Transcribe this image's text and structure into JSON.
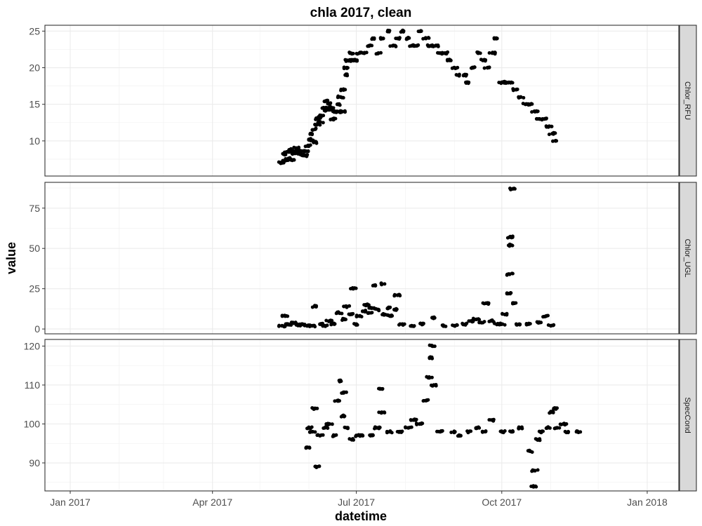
{
  "chart_data": {
    "type": "scatter",
    "title": "chla 2017, clean",
    "xlabel": "datetime",
    "ylabel": "value",
    "x_type": "date",
    "x_range": [
      "2016-12-16",
      "2018-01-21"
    ],
    "x_ticks": [
      {
        "date": "2017-01-01",
        "label": "Jan 2017"
      },
      {
        "date": "2017-04-01",
        "label": "Apr 2017"
      },
      {
        "date": "2017-07-01",
        "label": "Jul 2017"
      },
      {
        "date": "2017-10-01",
        "label": "Oct 2017"
      },
      {
        "date": "2018-01-01",
        "label": "Jan 2018"
      }
    ],
    "grid": true,
    "point_color": "#000000",
    "panels": [
      {
        "name": "Chlor_RFU",
        "ylim": [
          5.2,
          25.8
        ],
        "y_ticks": [
          10,
          15,
          20,
          25
        ],
        "points": [
          [
            "2017-05-15",
            7.0
          ],
          [
            "2017-05-16",
            8.2
          ],
          [
            "2017-05-17",
            7.3
          ],
          [
            "2017-05-18",
            8.5
          ],
          [
            "2017-05-19",
            7.6
          ],
          [
            "2017-05-20",
            8.8
          ],
          [
            "2017-05-21",
            7.4
          ],
          [
            "2017-05-22",
            8.6
          ],
          [
            "2017-05-23",
            8.3
          ],
          [
            "2017-05-24",
            9.0
          ],
          [
            "2017-05-25",
            8.4
          ],
          [
            "2017-05-26",
            8.7
          ],
          [
            "2017-05-27",
            8.5
          ],
          [
            "2017-05-28",
            8.1
          ],
          [
            "2017-05-29",
            8.0
          ],
          [
            "2017-05-30",
            8.6
          ],
          [
            "2017-05-31",
            9.3
          ],
          [
            "2017-06-01",
            10.2
          ],
          [
            "2017-06-02",
            11.0
          ],
          [
            "2017-06-03",
            10.1
          ],
          [
            "2017-06-04",
            9.8
          ],
          [
            "2017-06-05",
            11.6
          ],
          [
            "2017-06-06",
            12.2
          ],
          [
            "2017-06-07",
            13.0
          ],
          [
            "2017-06-08",
            12.6
          ],
          [
            "2017-06-09",
            13.4
          ],
          [
            "2017-06-10",
            14.5
          ],
          [
            "2017-06-11",
            15.4
          ],
          [
            "2017-06-12",
            14.2
          ],
          [
            "2017-06-13",
            15.1
          ],
          [
            "2017-06-14",
            14.3
          ],
          [
            "2017-06-15",
            14.6
          ],
          [
            "2017-06-16",
            13.0
          ],
          [
            "2017-06-17",
            14.0
          ],
          [
            "2017-06-18",
            14.0
          ],
          [
            "2017-06-19",
            15.0
          ],
          [
            "2017-06-20",
            14.0
          ],
          [
            "2017-06-21",
            16.0
          ],
          [
            "2017-06-22",
            14.0
          ],
          [
            "2017-06-23",
            17.0
          ],
          [
            "2017-06-24",
            19.0
          ],
          [
            "2017-06-25",
            20.0
          ],
          [
            "2017-06-26",
            21.0
          ],
          [
            "2017-06-27",
            22.0
          ],
          [
            "2017-06-28",
            21.0
          ],
          [
            "2017-06-29",
            21.0
          ],
          [
            "2017-06-30",
            21.0
          ],
          [
            "2017-07-03",
            22.0
          ],
          [
            "2017-07-06",
            22.0
          ],
          [
            "2017-07-09",
            23.0
          ],
          [
            "2017-07-12",
            24.0
          ],
          [
            "2017-07-15",
            22.0
          ],
          [
            "2017-07-18",
            24.0
          ],
          [
            "2017-07-21",
            25.0
          ],
          [
            "2017-07-24",
            23.0
          ],
          [
            "2017-07-27",
            24.0
          ],
          [
            "2017-07-30",
            25.0
          ],
          [
            "2017-08-02",
            24.0
          ],
          [
            "2017-08-05",
            23.0
          ],
          [
            "2017-08-08",
            23.0
          ],
          [
            "2017-08-11",
            25.0
          ],
          [
            "2017-08-14",
            24.0
          ],
          [
            "2017-08-17",
            23.0
          ],
          [
            "2017-08-20",
            23.0
          ],
          [
            "2017-08-23",
            22.0
          ],
          [
            "2017-08-26",
            22.0
          ],
          [
            "2017-08-29",
            21.0
          ],
          [
            "2017-09-01",
            20.0
          ],
          [
            "2017-09-04",
            19.0
          ],
          [
            "2017-09-07",
            19.0
          ],
          [
            "2017-09-10",
            18.0
          ],
          [
            "2017-09-13",
            20.0
          ],
          [
            "2017-09-16",
            22.0
          ],
          [
            "2017-09-19",
            21.0
          ],
          [
            "2017-09-22",
            20.0
          ],
          [
            "2017-09-25",
            22.0
          ],
          [
            "2017-09-28",
            24.0
          ],
          [
            "2017-10-01",
            18.0
          ],
          [
            "2017-10-04",
            18.0
          ],
          [
            "2017-10-07",
            18.0
          ],
          [
            "2017-10-10",
            17.0
          ],
          [
            "2017-10-13",
            16.0
          ],
          [
            "2017-10-16",
            15.0
          ],
          [
            "2017-10-19",
            15.0
          ],
          [
            "2017-10-22",
            14.0
          ],
          [
            "2017-10-25",
            13.0
          ],
          [
            "2017-10-28",
            13.0
          ],
          [
            "2017-10-31",
            12.0
          ],
          [
            "2017-11-02",
            11.0
          ],
          [
            "2017-11-04",
            10.0
          ]
        ]
      },
      {
        "name": "Chlor_UGL",
        "ylim": [
          -3,
          91
        ],
        "y_ticks": [
          0,
          25,
          50,
          75
        ],
        "points": [
          [
            "2017-05-15",
            2.0
          ],
          [
            "2017-05-17",
            8.0
          ],
          [
            "2017-05-19",
            3.0
          ],
          [
            "2017-05-22",
            4.0
          ],
          [
            "2017-05-25",
            2.5
          ],
          [
            "2017-05-28",
            3.0
          ],
          [
            "2017-05-31",
            2.0
          ],
          [
            "2017-06-03",
            2.0
          ],
          [
            "2017-06-05",
            14.0
          ],
          [
            "2017-06-08",
            3.0
          ],
          [
            "2017-06-11",
            2.0
          ],
          [
            "2017-06-14",
            5.0
          ],
          [
            "2017-06-17",
            3.0
          ],
          [
            "2017-06-20",
            10.0
          ],
          [
            "2017-06-23",
            6.0
          ],
          [
            "2017-06-25",
            14.0
          ],
          [
            "2017-06-27",
            9.0
          ],
          [
            "2017-06-29",
            25.0
          ],
          [
            "2017-07-01",
            3.0
          ],
          [
            "2017-07-03",
            8.0
          ],
          [
            "2017-07-05",
            11.0
          ],
          [
            "2017-07-07",
            15.0
          ],
          [
            "2017-07-09",
            10.0
          ],
          [
            "2017-07-11",
            13.0
          ],
          [
            "2017-07-13",
            27.0
          ],
          [
            "2017-07-15",
            12.0
          ],
          [
            "2017-07-17",
            28.0
          ],
          [
            "2017-07-19",
            9.0
          ],
          [
            "2017-07-21",
            13.0
          ],
          [
            "2017-07-23",
            8.0
          ],
          [
            "2017-07-25",
            12.0
          ],
          [
            "2017-07-27",
            21.0
          ],
          [
            "2017-07-30",
            3.0
          ],
          [
            "2017-08-05",
            2.0
          ],
          [
            "2017-08-12",
            3.0
          ],
          [
            "2017-08-18",
            7.0
          ],
          [
            "2017-08-25",
            2.0
          ],
          [
            "2017-09-01",
            2.0
          ],
          [
            "2017-09-08",
            3.0
          ],
          [
            "2017-09-12",
            5.0
          ],
          [
            "2017-09-15",
            6.0
          ],
          [
            "2017-09-18",
            4.0
          ],
          [
            "2017-09-21",
            16.0
          ],
          [
            "2017-09-25",
            5.0
          ],
          [
            "2017-09-28",
            3.0
          ],
          [
            "2017-10-01",
            3.0
          ],
          [
            "2017-10-03",
            9.0
          ],
          [
            "2017-10-05",
            22.0
          ],
          [
            "2017-10-06",
            34.0
          ],
          [
            "2017-10-06",
            57.0
          ],
          [
            "2017-10-07",
            52.0
          ],
          [
            "2017-10-08",
            87.0
          ],
          [
            "2017-10-09",
            16.0
          ],
          [
            "2017-10-12",
            3.0
          ],
          [
            "2017-10-18",
            3.0
          ],
          [
            "2017-10-25",
            4.0
          ],
          [
            "2017-10-29",
            8.0
          ],
          [
            "2017-11-01",
            2.0
          ]
        ]
      },
      {
        "name": "SpecCond",
        "ylim": [
          82.8,
          121.7
        ],
        "y_ticks": [
          90,
          100,
          110,
          120
        ],
        "points": [
          [
            "2017-05-31",
            94.0
          ],
          [
            "2017-06-01",
            99.0
          ],
          [
            "2017-06-03",
            98.0
          ],
          [
            "2017-06-05",
            104.0
          ],
          [
            "2017-06-06",
            89.0
          ],
          [
            "2017-06-08",
            97.0
          ],
          [
            "2017-06-11",
            99.0
          ],
          [
            "2017-06-14",
            100.0
          ],
          [
            "2017-06-17",
            97.0
          ],
          [
            "2017-06-19",
            106.0
          ],
          [
            "2017-06-21",
            111.0
          ],
          [
            "2017-06-22",
            102.0
          ],
          [
            "2017-06-23",
            108.0
          ],
          [
            "2017-06-25",
            99.0
          ],
          [
            "2017-06-28",
            96.0
          ],
          [
            "2017-07-01",
            97.0
          ],
          [
            "2017-07-05",
            97.0
          ],
          [
            "2017-07-10",
            97.0
          ],
          [
            "2017-07-14",
            99.0
          ],
          [
            "2017-07-16",
            109.0
          ],
          [
            "2017-07-17",
            103.0
          ],
          [
            "2017-07-22",
            98.0
          ],
          [
            "2017-07-28",
            98.0
          ],
          [
            "2017-08-03",
            99.0
          ],
          [
            "2017-08-06",
            101.0
          ],
          [
            "2017-08-10",
            100.0
          ],
          [
            "2017-08-14",
            106.0
          ],
          [
            "2017-08-16",
            112.0
          ],
          [
            "2017-08-17",
            117.0
          ],
          [
            "2017-08-18",
            120.0
          ],
          [
            "2017-08-19",
            110.0
          ],
          [
            "2017-08-23",
            98.0
          ],
          [
            "2017-09-01",
            98.0
          ],
          [
            "2017-09-05",
            97.0
          ],
          [
            "2017-09-10",
            98.0
          ],
          [
            "2017-09-15",
            99.0
          ],
          [
            "2017-09-19",
            98.0
          ],
          [
            "2017-09-25",
            101.0
          ],
          [
            "2017-10-01",
            98.0
          ],
          [
            "2017-10-07",
            98.0
          ],
          [
            "2017-10-13",
            99.0
          ],
          [
            "2017-10-19",
            93.0
          ],
          [
            "2017-10-21",
            84.0
          ],
          [
            "2017-10-22",
            88.0
          ],
          [
            "2017-10-24",
            96.0
          ],
          [
            "2017-10-26",
            98.0
          ],
          [
            "2017-10-30",
            99.0
          ],
          [
            "2017-11-01",
            103.0
          ],
          [
            "2017-11-03",
            104.0
          ],
          [
            "2017-11-05",
            99.0
          ],
          [
            "2017-11-09",
            100.0
          ],
          [
            "2017-11-12",
            98.0
          ],
          [
            "2017-11-18",
            98.0
          ]
        ]
      }
    ]
  }
}
